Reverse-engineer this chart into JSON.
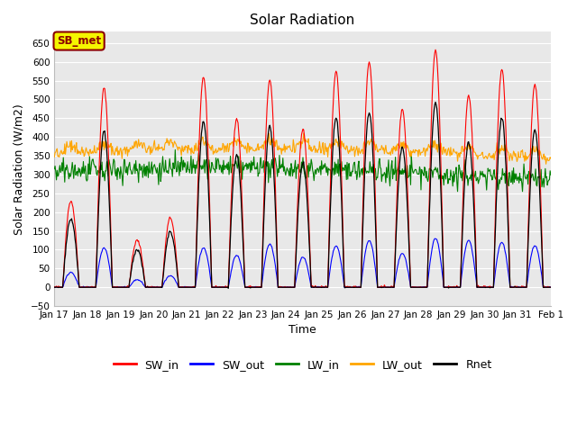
{
  "title": "Solar Radiation",
  "xlabel": "Time",
  "ylabel": "Solar Radiation (W/m2)",
  "ylim": [
    -50,
    680
  ],
  "yticks": [
    -50,
    0,
    50,
    100,
    150,
    200,
    250,
    300,
    350,
    400,
    450,
    500,
    550,
    600,
    650
  ],
  "background_color": "#e8e8e8",
  "legend_labels": [
    "SW_in",
    "SW_out",
    "LW_in",
    "LW_out",
    "Rnet"
  ],
  "legend_colors": [
    "red",
    "blue",
    "green",
    "orange",
    "black"
  ],
  "annotation_text": "SB_met",
  "annotation_bg": "#f5f500",
  "annotation_border": "#8B0000",
  "n_days": 15,
  "start_day": 17,
  "pts_per_day": 48,
  "peaks_SWin": [
    230,
    530,
    125,
    185,
    560,
    450,
    550,
    420,
    575,
    600,
    475,
    630,
    510,
    580,
    540
  ],
  "peaks_SWout": [
    40,
    105,
    20,
    30,
    105,
    85,
    115,
    80,
    110,
    125,
    90,
    130,
    125,
    120,
    110
  ]
}
